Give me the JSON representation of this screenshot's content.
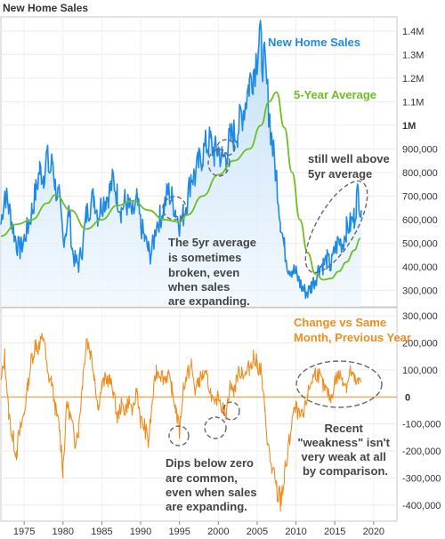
{
  "title": "New Home Sales",
  "colors": {
    "sales": "#1f8ae6",
    "average": "#6cc024",
    "change": "#f08c1e",
    "zero_line": "#f08c1e",
    "annotation": "#444444",
    "circle": "#555555"
  },
  "chart_data": [
    {
      "type": "line",
      "title": "New Home Sales",
      "xlim": [
        1972,
        2023
      ],
      "ylim": [
        230000,
        1460000
      ],
      "yticks": [
        {
          "value": 300000,
          "label": "300,000",
          "bold": false
        },
        {
          "value": 400000,
          "label": "400,000",
          "bold": false
        },
        {
          "value": 500000,
          "label": "500,000",
          "bold": false
        },
        {
          "value": 600000,
          "label": "600,000",
          "bold": false
        },
        {
          "value": 700000,
          "label": "700,000",
          "bold": false
        },
        {
          "value": 800000,
          "label": "800,000",
          "bold": false
        },
        {
          "value": 900000,
          "label": "900,000",
          "bold": false
        },
        {
          "value": 1000000,
          "label": "1M",
          "bold": true
        },
        {
          "value": 1100000,
          "label": "1.1M",
          "bold": false
        },
        {
          "value": 1200000,
          "label": "1.2M",
          "bold": false
        },
        {
          "value": 1300000,
          "label": "1.3M",
          "bold": false
        },
        {
          "value": 1400000,
          "label": "1.4M",
          "bold": false
        }
      ],
      "series": [
        {
          "name": "New Home Sales",
          "x": [
            1972.0,
            1972.5,
            1973.0,
            1973.3,
            1973.6,
            1974.0,
            1974.5,
            1975.0,
            1975.5,
            1976.0,
            1976.5,
            1977.0,
            1977.5,
            1977.9,
            1978.3,
            1978.7,
            1979.0,
            1979.5,
            1980.0,
            1980.4,
            1980.8,
            1981.2,
            1981.6,
            1982.0,
            1982.5,
            1983.0,
            1983.5,
            1984.0,
            1984.5,
            1985.0,
            1985.5,
            1986.0,
            1986.5,
            1987.0,
            1987.5,
            1988.0,
            1988.5,
            1989.0,
            1989.5,
            1990.0,
            1990.5,
            1991.0,
            1991.3,
            1991.7,
            1992.0,
            1992.5,
            1993.0,
            1993.5,
            1994.0,
            1994.5,
            1995.0,
            1995.5,
            1996.0,
            1996.5,
            1997.0,
            1997.5,
            1998.0,
            1998.5,
            1999.0,
            1999.5,
            2000.0,
            2000.5,
            2001.0,
            2001.5,
            2002.0,
            2002.5,
            2003.0,
            2003.5,
            2004.0,
            2004.5,
            2005.0,
            2005.3,
            2005.6,
            2006.0,
            2006.5,
            2007.0,
            2007.5,
            2008.0,
            2008.5,
            2009.0,
            2009.5,
            2010.0,
            2010.5,
            2011.0,
            2011.5,
            2012.0,
            2012.5,
            2013.0,
            2013.5,
            2014.0,
            2014.5,
            2015.0,
            2015.5,
            2016.0,
            2016.5,
            2017.0,
            2017.5,
            2017.8,
            2018.0,
            2018.4
          ],
          "y": [
            580000,
            720000,
            650000,
            610000,
            560000,
            500000,
            470000,
            520000,
            570000,
            640000,
            720000,
            810000,
            790000,
            870000,
            800000,
            850000,
            740000,
            690000,
            520000,
            560000,
            640000,
            470000,
            420000,
            410000,
            480000,
            620000,
            660000,
            700000,
            620000,
            670000,
            690000,
            720000,
            770000,
            700000,
            640000,
            680000,
            650000,
            620000,
            680000,
            580000,
            520000,
            470000,
            450000,
            510000,
            580000,
            610000,
            650000,
            720000,
            690000,
            640000,
            580000,
            620000,
            680000,
            790000,
            780000,
            840000,
            880000,
            920000,
            930000,
            880000,
            900000,
            860000,
            870000,
            940000,
            960000,
            980000,
            1040000,
            1100000,
            1180000,
            1230000,
            1300000,
            1380000,
            1300000,
            1250000,
            1070000,
            900000,
            780000,
            600000,
            480000,
            400000,
            390000,
            370000,
            330000,
            300000,
            290000,
            320000,
            350000,
            400000,
            410000,
            430000,
            400000,
            470000,
            510000,
            500000,
            560000,
            580000,
            610000,
            680000,
            720000,
            640000
          ]
        },
        {
          "name": "5-Year Average",
          "x": [
            1972.0,
            1974.0,
            1976.0,
            1978.0,
            1979.0,
            1981.0,
            1983.0,
            1985.0,
            1987.0,
            1989.0,
            1991.0,
            1993.0,
            1995.0,
            1996.0,
            1998.0,
            2000.0,
            2002.0,
            2004.0,
            2005.5,
            2006.5,
            2007.5,
            2008.5,
            2009.5,
            2010.5,
            2011.5,
            2012.5,
            2013.5,
            2014.5,
            2015.5,
            2016.5,
            2017.5,
            2018.3
          ],
          "y": [
            530000,
            580000,
            600000,
            670000,
            705000,
            640000,
            560000,
            600000,
            660000,
            680000,
            640000,
            600000,
            590000,
            620000,
            700000,
            790000,
            850000,
            900000,
            1000000,
            1100000,
            1140000,
            990000,
            800000,
            600000,
            460000,
            370000,
            345000,
            350000,
            380000,
            420000,
            470000,
            520000
          ]
        }
      ],
      "annotations": [
        {
          "text": "New Home Sales",
          "lines": [
            "New Home Sales"
          ]
        },
        {
          "text": "5-Year Average",
          "lines": [
            "5-Year Average"
          ]
        },
        {
          "text": "still well above 5yr average",
          "lines": [
            "still well above",
            "5yr average"
          ]
        },
        {
          "text": "The 5yr average is sometimes broken, even when sales are expanding.",
          "lines": [
            "The 5yr average",
            "is sometimes",
            "broken, even",
            "when sales",
            "are expanding."
          ]
        }
      ]
    },
    {
      "type": "line",
      "xlim": [
        1972,
        2023
      ],
      "ylim": [
        -460000,
        330000
      ],
      "xticks": [
        1975,
        1980,
        1985,
        1990,
        1995,
        2000,
        2005,
        2010,
        2015,
        2020
      ],
      "yticks": [
        {
          "value": 300000,
          "label": "300,000"
        },
        {
          "value": 200000,
          "label": "200,000"
        },
        {
          "value": 100000,
          "label": "100,000"
        },
        {
          "value": 0,
          "label": "0"
        },
        {
          "value": -100000,
          "label": "-100,000"
        },
        {
          "value": -200000,
          "label": "-200,000"
        },
        {
          "value": -300000,
          "label": "-300,000"
        },
        {
          "value": -400000,
          "label": "-400,000"
        }
      ],
      "series": [
        {
          "name": "Change vs Same Month, Previous Year",
          "x": [
            1972.0,
            1972.5,
            1973.0,
            1973.5,
            1974.0,
            1974.5,
            1975.0,
            1975.5,
            1976.0,
            1976.5,
            1977.0,
            1977.5,
            1978.0,
            1978.5,
            1979.0,
            1979.5,
            1980.0,
            1980.5,
            1981.0,
            1981.5,
            1982.0,
            1982.5,
            1983.0,
            1983.5,
            1984.0,
            1984.5,
            1985.0,
            1985.5,
            1986.0,
            1986.5,
            1987.0,
            1987.5,
            1988.0,
            1988.5,
            1989.0,
            1989.5,
            1990.0,
            1990.5,
            1991.0,
            1991.5,
            1992.0,
            1992.5,
            1993.0,
            1993.5,
            1994.0,
            1994.5,
            1995.0,
            1995.5,
            1996.0,
            1996.5,
            1997.0,
            1997.5,
            1998.0,
            1998.5,
            1999.0,
            1999.5,
            2000.0,
            2000.5,
            2001.0,
            2001.5,
            2002.0,
            2002.5,
            2003.0,
            2003.5,
            2004.0,
            2004.5,
            2005.0,
            2005.5,
            2006.0,
            2006.5,
            2007.0,
            2007.5,
            2008.0,
            2008.5,
            2009.0,
            2009.5,
            2010.0,
            2010.5,
            2011.0,
            2011.5,
            2012.0,
            2012.5,
            2013.0,
            2013.5,
            2014.0,
            2014.5,
            2015.0,
            2015.5,
            2016.0,
            2016.5,
            2017.0,
            2017.5,
            2018.0,
            2018.4
          ],
          "y": [
            50000,
            150000,
            -60000,
            -150000,
            -200000,
            -120000,
            -60000,
            50000,
            150000,
            200000,
            180000,
            230000,
            80000,
            60000,
            -40000,
            -110000,
            -260000,
            -20000,
            -80000,
            -160000,
            -120000,
            50000,
            220000,
            170000,
            90000,
            -40000,
            40000,
            70000,
            60000,
            20000,
            -80000,
            -30000,
            -50000,
            -10000,
            -60000,
            30000,
            -90000,
            -110000,
            -170000,
            -20000,
            100000,
            90000,
            70000,
            80000,
            30000,
            -40000,
            -130000,
            40000,
            80000,
            120000,
            20000,
            60000,
            80000,
            70000,
            20000,
            -40000,
            10000,
            -40000,
            -60000,
            40000,
            20000,
            80000,
            100000,
            80000,
            110000,
            150000,
            120000,
            100000,
            -60000,
            -200000,
            -280000,
            -350000,
            -380000,
            -300000,
            -200000,
            -80000,
            -40000,
            -80000,
            -70000,
            10000,
            60000,
            90000,
            80000,
            40000,
            20000,
            -10000,
            60000,
            80000,
            70000,
            40000,
            100000,
            60000,
            50000,
            60000
          ]
        }
      ],
      "annotations": [
        {
          "text": "Change vs Same Month, Previous Year",
          "lines": [
            "Change vs Same",
            "Month, Previous Year"
          ]
        },
        {
          "text": "Dips below zero are common, even when sales are expanding.",
          "lines": [
            "Dips below zero",
            "are common,",
            "even when sales",
            "are expanding."
          ]
        },
        {
          "text": "Recent \"weakness\" isn't very weak at all by comparison.",
          "lines": [
            "Recent",
            "\"weakness\" isn't",
            "very weak at all",
            "by comparison."
          ]
        }
      ]
    }
  ]
}
